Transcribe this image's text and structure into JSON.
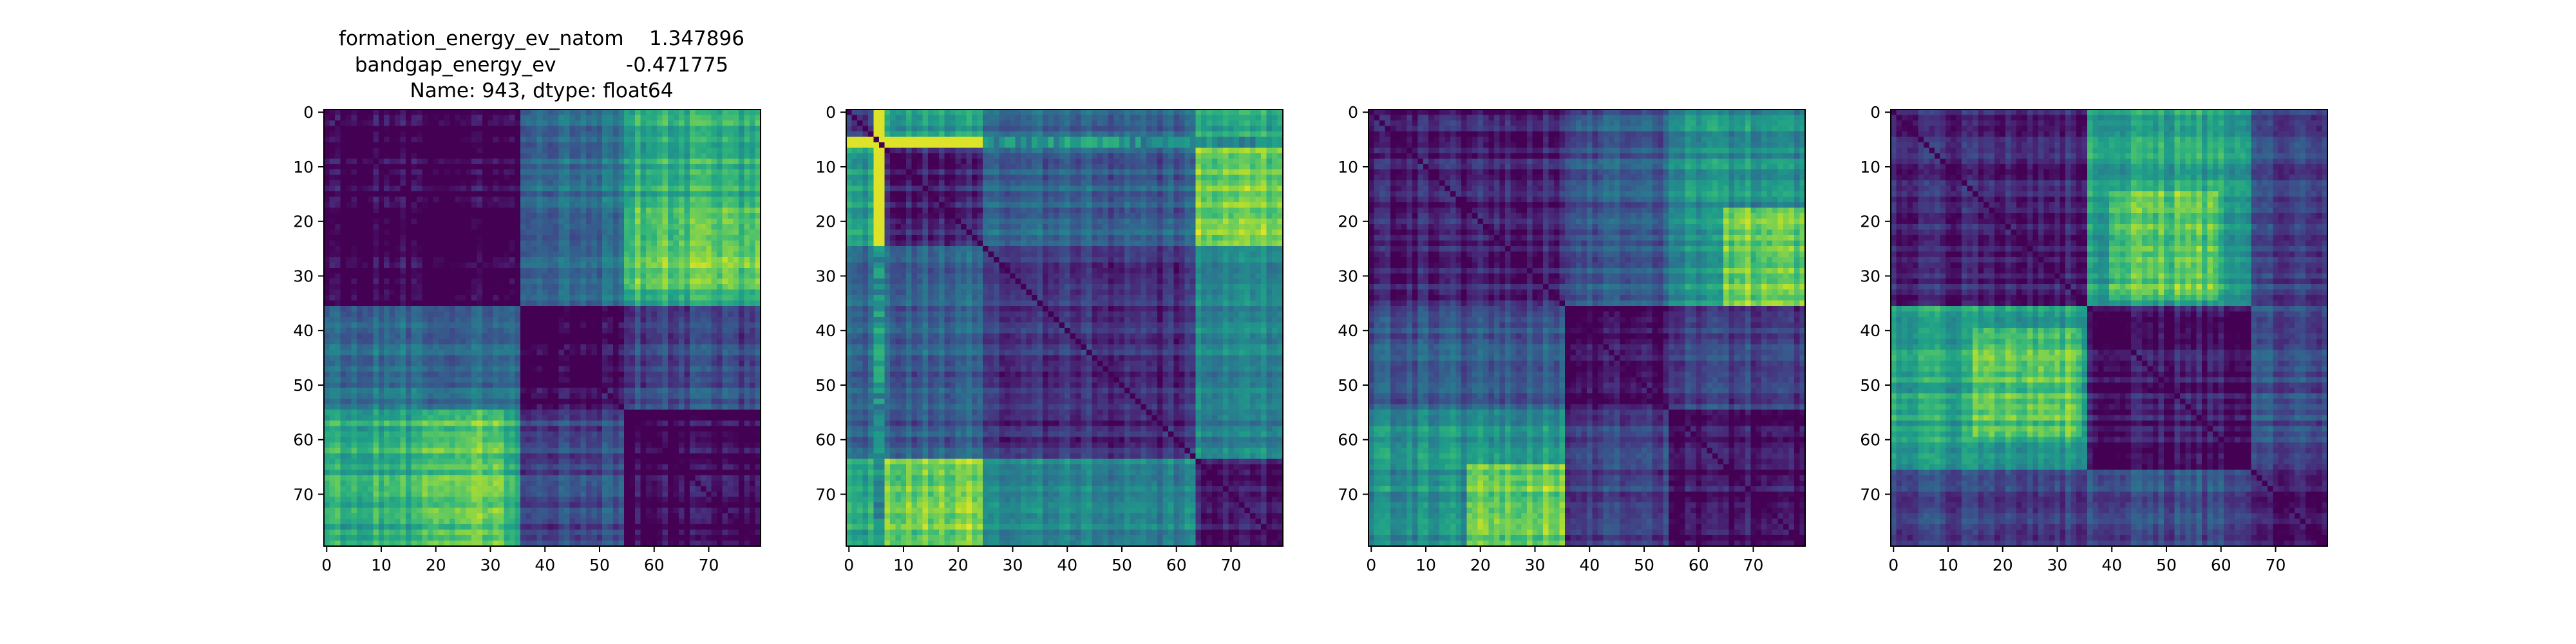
{
  "title_lines": [
    "formation_energy_ev_natom    1.347896",
    "bandgap_energy_ev           -0.471775",
    "Name: 943, dtype: float64"
  ],
  "chart_data": [
    {
      "type": "heatmap",
      "title": "",
      "matrix_size": 80,
      "xticks": [
        0,
        10,
        20,
        30,
        40,
        50,
        60,
        70
      ],
      "yticks": [
        0,
        10,
        20,
        30,
        40,
        50,
        60,
        70
      ],
      "xlim": [
        -0.5,
        79.5
      ],
      "ylim": [
        79.5,
        -0.5
      ],
      "colormap": "viridis",
      "blocks": [
        [
          0,
          36
        ],
        [
          36,
          55
        ],
        [
          55,
          80
        ]
      ],
      "block_levels": [
        [
          0.0,
          0.35,
          0.62
        ],
        [
          0.35,
          0.0,
          0.22
        ],
        [
          0.62,
          0.22,
          0.0
        ]
      ],
      "hot_region": {
        "rows": [
          18,
          33
        ],
        "cols": [
          55,
          80
        ],
        "peak": 0.92
      }
    },
    {
      "type": "heatmap",
      "title": "",
      "matrix_size": 80,
      "xticks": [
        0,
        10,
        20,
        30,
        40,
        50,
        60,
        70
      ],
      "yticks": [
        0,
        10,
        20,
        30,
        40,
        50,
        60,
        70
      ],
      "xlim": [
        -0.5,
        79.5
      ],
      "ylim": [
        79.5,
        -0.5
      ],
      "colormap": "viridis",
      "blocks": [
        [
          0,
          7
        ],
        [
          7,
          25
        ],
        [
          25,
          64
        ],
        [
          64,
          80
        ]
      ],
      "block_levels": [
        [
          0.15,
          0.55,
          0.3,
          0.6
        ],
        [
          0.55,
          0.1,
          0.3,
          0.8
        ],
        [
          0.3,
          0.3,
          0.12,
          0.45
        ],
        [
          0.6,
          0.8,
          0.45,
          0.08
        ]
      ],
      "bright_lines": [
        5,
        6
      ],
      "hot_region": {
        "rows": [
          64,
          80
        ],
        "cols": [
          8,
          25
        ],
        "peak": 0.95
      }
    },
    {
      "type": "heatmap",
      "title": "",
      "matrix_size": 80,
      "xticks": [
        0,
        10,
        20,
        30,
        40,
        50,
        60,
        70
      ],
      "yticks": [
        0,
        10,
        20,
        30,
        40,
        50,
        60,
        70
      ],
      "xlim": [
        -0.5,
        79.5
      ],
      "ylim": [
        79.5,
        -0.5
      ],
      "colormap": "viridis",
      "blocks": [
        [
          0,
          36
        ],
        [
          36,
          55
        ],
        [
          55,
          80
        ]
      ],
      "block_levels": [
        [
          0.08,
          0.28,
          0.5
        ],
        [
          0.28,
          0.05,
          0.2
        ],
        [
          0.5,
          0.2,
          0.05
        ]
      ],
      "hot_region": {
        "rows": [
          65,
          80
        ],
        "cols": [
          18,
          36
        ],
        "peak": 0.92
      }
    },
    {
      "type": "heatmap",
      "title": "",
      "matrix_size": 80,
      "xticks": [
        0,
        10,
        20,
        30,
        40,
        50,
        60,
        70
      ],
      "yticks": [
        0,
        10,
        20,
        30,
        40,
        50,
        60,
        70
      ],
      "xlim": [
        -0.5,
        79.5
      ],
      "ylim": [
        79.5,
        -0.5
      ],
      "colormap": "viridis",
      "blocks": [
        [
          0,
          36
        ],
        [
          36,
          66
        ],
        [
          66,
          80
        ]
      ],
      "block_levels": [
        [
          0.1,
          0.58,
          0.2
        ],
        [
          0.58,
          0.07,
          0.25
        ],
        [
          0.2,
          0.25,
          0.08
        ]
      ],
      "hot_region": {
        "rows": [
          40,
          60
        ],
        "cols": [
          15,
          35
        ],
        "peak": 0.9
      }
    }
  ]
}
